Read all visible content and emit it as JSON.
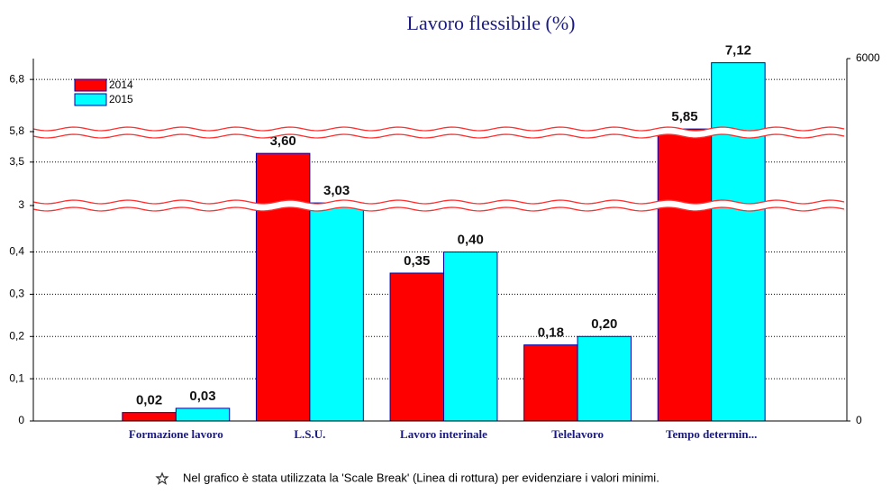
{
  "chart_data": {
    "type": "bar",
    "title": "Lavoro flessibile (%)",
    "categories": [
      "Formazione lavoro",
      "L.S.U.",
      "Lavoro interinale",
      "Telelavoro",
      "Tempo determin..."
    ],
    "series": [
      {
        "name": "2014",
        "color": "#ff0000",
        "values": [
          0.02,
          3.6,
          0.35,
          0.18,
          5.85
        ],
        "value_labels": [
          "0,02",
          "3,60",
          "0,35",
          "0,18",
          "5,85"
        ]
      },
      {
        "name": "2015",
        "color": "#00ffff",
        "values": [
          0.03,
          3.03,
          0.4,
          0.2,
          7.12
        ],
        "value_labels": [
          "0,03",
          "3,03",
          "0,40",
          "0,20",
          "7,12"
        ]
      }
    ],
    "ylim": [
      0,
      7.2
    ],
    "y_segments": [
      [
        0,
        0.51
      ],
      [
        3,
        3.83
      ],
      [
        5.8,
        7.2
      ]
    ],
    "yticks": [
      0,
      {
        "value": 0.1,
        "label": "0,1"
      },
      {
        "value": 0.2,
        "label": "0,2"
      },
      {
        "value": 0.3,
        "label": "0,3"
      },
      {
        "value": 0.4,
        "label": "0,4"
      },
      3,
      {
        "value": 3.5,
        "label": "3,5"
      },
      {
        "value": 5.8,
        "label": "5,8"
      },
      {
        "value": 6.8,
        "label": "6,8"
      }
    ],
    "y2lim": [
      0,
      6000
    ],
    "y2ticks": [
      0,
      6000
    ],
    "grid": true,
    "legend": "top-left",
    "note": "Nel grafico è stata utilizzata la 'Scale Break' (Linea di rottura) per evidenziare i valori minimi."
  }
}
